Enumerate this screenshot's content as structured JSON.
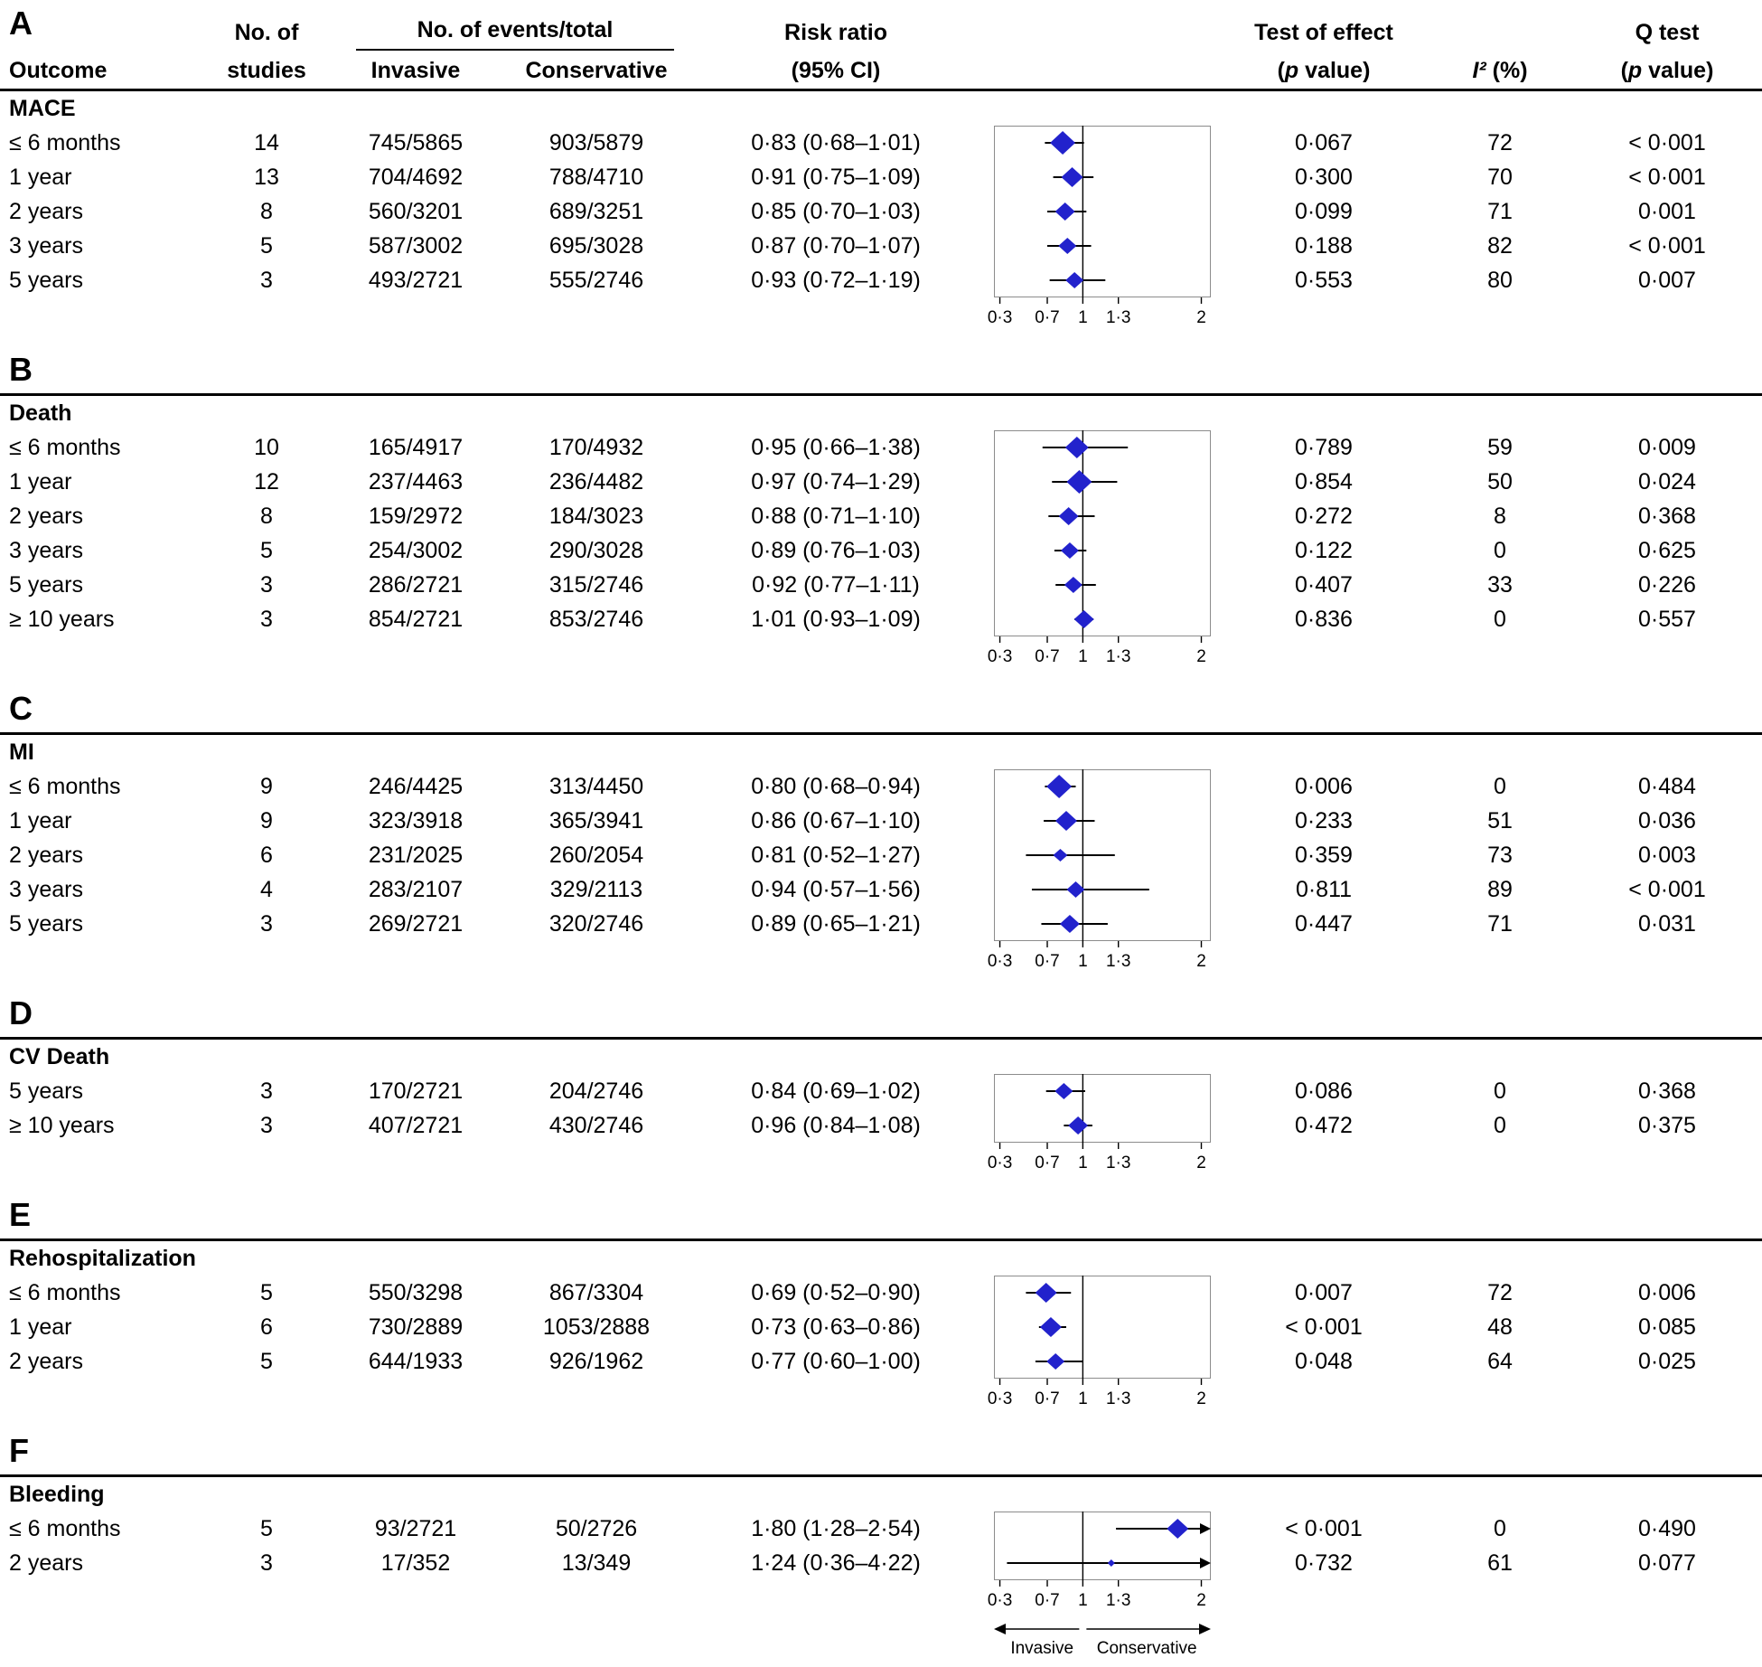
{
  "header": {
    "outcome": "Outcome",
    "no_of": "No. of",
    "studies": "studies",
    "events_total": "No. of events/total",
    "invasive": "Invasive",
    "conservative": "Conservative",
    "risk_ratio": "Risk ratio",
    "ci": "(95% CI)",
    "test_of_effect": "Test of effect",
    "p_open": "(",
    "p_italic": "p",
    "p_rest": " value)",
    "i2": "I²",
    "i2_unit": " (%)",
    "q_test": "Q test"
  },
  "footer": {
    "invasive": "Invasive",
    "conservative": "Conservative"
  },
  "colors": {
    "marker": "#2222cc",
    "box_border": "#8c8c8c",
    "rule": "#000000"
  },
  "chart_data": [
    {
      "type": "scatter",
      "panel_letter": "A",
      "group": "MACE",
      "xlim": [
        0.3,
        2
      ],
      "x_ref": 1,
      "xticks": [
        0.3,
        0.7,
        1,
        1.3,
        2
      ],
      "xtick_labels": [
        "0·3",
        "0·7",
        "1",
        "1·3",
        "2"
      ],
      "rows": [
        {
          "outcome": "≤ 6 months",
          "studies": 14,
          "invasive": "745/5865",
          "conservative": "903/5879",
          "rr_label": "0·83 (0·68–1·01)",
          "rr": 0.83,
          "ci_lo": 0.68,
          "ci_hi": 1.01,
          "marker": 14,
          "p_effect": "0·067",
          "i2": 72,
          "q_p": "< 0·001"
        },
        {
          "outcome": "1 year",
          "studies": 13,
          "invasive": "704/4692",
          "conservative": "788/4710",
          "rr_label": "0·91 (0·75–1·09)",
          "rr": 0.91,
          "ci_lo": 0.75,
          "ci_hi": 1.09,
          "marker": 12,
          "p_effect": "0·300",
          "i2": 70,
          "q_p": "< 0·001"
        },
        {
          "outcome": "2 years",
          "studies": 8,
          "invasive": "560/3201",
          "conservative": "689/3251",
          "rr_label": "0·85 (0·70–1·03)",
          "rr": 0.85,
          "ci_lo": 0.7,
          "ci_hi": 1.03,
          "marker": 11,
          "p_effect": "0·099",
          "i2": 71,
          "q_p": "0·001"
        },
        {
          "outcome": "3 years",
          "studies": 5,
          "invasive": "587/3002",
          "conservative": "695/3028",
          "rr_label": "0·87 (0·70–1·07)",
          "rr": 0.87,
          "ci_lo": 0.7,
          "ci_hi": 1.07,
          "marker": 10,
          "p_effect": "0·188",
          "i2": 82,
          "q_p": "< 0·001"
        },
        {
          "outcome": "5 years",
          "studies": 3,
          "invasive": "493/2721",
          "conservative": "555/2746",
          "rr_label": "0·93 (0·72–1·19)",
          "rr": 0.93,
          "ci_lo": 0.72,
          "ci_hi": 1.19,
          "marker": 10,
          "p_effect": "0·553",
          "i2": 80,
          "q_p": "0·007"
        }
      ]
    },
    {
      "type": "scatter",
      "panel_letter": "B",
      "group": "Death",
      "xlim": [
        0.3,
        2
      ],
      "x_ref": 1,
      "xticks": [
        0.3,
        0.7,
        1,
        1.3,
        2
      ],
      "xtick_labels": [
        "0·3",
        "0·7",
        "1",
        "1·3",
        "2"
      ],
      "rows": [
        {
          "outcome": "≤ 6 months",
          "studies": 10,
          "invasive": "165/4917",
          "conservative": "170/4932",
          "rr_label": "0·95 (0·66–1·38)",
          "rr": 0.95,
          "ci_lo": 0.66,
          "ci_hi": 1.38,
          "marker": 13,
          "p_effect": "0·789",
          "i2": 59,
          "q_p": "0·009"
        },
        {
          "outcome": "1 year",
          "studies": 12,
          "invasive": "237/4463",
          "conservative": "236/4482",
          "rr_label": "0·97 (0·74–1·29)",
          "rr": 0.97,
          "ci_lo": 0.74,
          "ci_hi": 1.29,
          "marker": 14,
          "p_effect": "0·854",
          "i2": 50,
          "q_p": "0·024"
        },
        {
          "outcome": "2 years",
          "studies": 8,
          "invasive": "159/2972",
          "conservative": "184/3023",
          "rr_label": "0·88 (0·71–1·10)",
          "rr": 0.88,
          "ci_lo": 0.71,
          "ci_hi": 1.1,
          "marker": 11,
          "p_effect": "0·272",
          "i2": 8,
          "q_p": "0·368"
        },
        {
          "outcome": "3 years",
          "studies": 5,
          "invasive": "254/3002",
          "conservative": "290/3028",
          "rr_label": "0·89 (0·76–1·03)",
          "rr": 0.89,
          "ci_lo": 0.76,
          "ci_hi": 1.03,
          "marker": 10,
          "p_effect": "0·122",
          "i2": 0,
          "q_p": "0·625"
        },
        {
          "outcome": "5 years",
          "studies": 3,
          "invasive": "286/2721",
          "conservative": "315/2746",
          "rr_label": "0·92 (0·77–1·11)",
          "rr": 0.92,
          "ci_lo": 0.77,
          "ci_hi": 1.11,
          "marker": 10,
          "p_effect": "0·407",
          "i2": 33,
          "q_p": "0·226"
        },
        {
          "outcome": "≥ 10 years",
          "studies": 3,
          "invasive": "854/2721",
          "conservative": "853/2746",
          "rr_label": "1·01 (0·93–1·09)",
          "rr": 1.01,
          "ci_lo": 0.93,
          "ci_hi": 1.09,
          "marker": 11,
          "p_effect": "0·836",
          "i2": 0,
          "q_p": "0·557"
        }
      ]
    },
    {
      "type": "scatter",
      "panel_letter": "C",
      "group": "MI",
      "xlim": [
        0.3,
        2
      ],
      "x_ref": 1,
      "xticks": [
        0.3,
        0.7,
        1,
        1.3,
        2
      ],
      "xtick_labels": [
        "0·3",
        "0·7",
        "1",
        "1·3",
        "2"
      ],
      "rows": [
        {
          "outcome": "≤ 6 months",
          "studies": 9,
          "invasive": "246/4425",
          "conservative": "313/4450",
          "rr_label": "0·80 (0·68–0·94)",
          "rr": 0.8,
          "ci_lo": 0.68,
          "ci_hi": 0.94,
          "marker": 14,
          "p_effect": "0·006",
          "i2": 0,
          "q_p": "0·484"
        },
        {
          "outcome": "1 year",
          "studies": 9,
          "invasive": "323/3918",
          "conservative": "365/3941",
          "rr_label": "0·86 (0·67–1·10)",
          "rr": 0.86,
          "ci_lo": 0.67,
          "ci_hi": 1.1,
          "marker": 12,
          "p_effect": "0·233",
          "i2": 51,
          "q_p": "0·036"
        },
        {
          "outcome": "2 years",
          "studies": 6,
          "invasive": "231/2025",
          "conservative": "260/2054",
          "rr_label": "0·81 (0·52–1·27)",
          "rr": 0.81,
          "ci_lo": 0.52,
          "ci_hi": 1.27,
          "marker": 8,
          "p_effect": "0·359",
          "i2": 73,
          "q_p": "0·003"
        },
        {
          "outcome": "3 years",
          "studies": 4,
          "invasive": "283/2107",
          "conservative": "329/2113",
          "rr_label": "0·94 (0·57–1·56)",
          "rr": 0.94,
          "ci_lo": 0.57,
          "ci_hi": 1.56,
          "marker": 10,
          "p_effect": "0·811",
          "i2": 89,
          "q_p": "< 0·001"
        },
        {
          "outcome": "5 years",
          "studies": 3,
          "invasive": "269/2721",
          "conservative": "320/2746",
          "rr_label": "0·89 (0·65–1·21)",
          "rr": 0.89,
          "ci_lo": 0.65,
          "ci_hi": 1.21,
          "marker": 11,
          "p_effect": "0·447",
          "i2": 71,
          "q_p": "0·031"
        }
      ]
    },
    {
      "type": "scatter",
      "panel_letter": "D",
      "group": "CV Death",
      "xlim": [
        0.3,
        2
      ],
      "x_ref": 1,
      "xticks": [
        0.3,
        0.7,
        1,
        1.3,
        2
      ],
      "xtick_labels": [
        "0·3",
        "0·7",
        "1",
        "1·3",
        "2"
      ],
      "rows": [
        {
          "outcome": "5 years",
          "studies": 3,
          "invasive": "170/2721",
          "conservative": "204/2746",
          "rr_label": "0·84 (0·69–1·02)",
          "rr": 0.84,
          "ci_lo": 0.69,
          "ci_hi": 1.02,
          "marker": 10,
          "p_effect": "0·086",
          "i2": 0,
          "q_p": "0·368"
        },
        {
          "outcome": "≥ 10 years",
          "studies": 3,
          "invasive": "407/2721",
          "conservative": "430/2746",
          "rr_label": "0·96 (0·84–1·08)",
          "rr": 0.96,
          "ci_lo": 0.84,
          "ci_hi": 1.08,
          "marker": 11,
          "p_effect": "0·472",
          "i2": 0,
          "q_p": "0·375"
        }
      ]
    },
    {
      "type": "scatter",
      "panel_letter": "E",
      "group": "Rehospitalization",
      "xlim": [
        0.3,
        2
      ],
      "x_ref": 1,
      "xticks": [
        0.3,
        0.7,
        1,
        1.3,
        2
      ],
      "xtick_labels": [
        "0·3",
        "0·7",
        "1",
        "1·3",
        "2"
      ],
      "rows": [
        {
          "outcome": "≤ 6 months",
          "studies": 5,
          "invasive": "550/3298",
          "conservative": "867/3304",
          "rr_label": "0·69 (0·52–0·90)",
          "rr": 0.69,
          "ci_lo": 0.52,
          "ci_hi": 0.9,
          "marker": 12,
          "p_effect": "0·007",
          "i2": 72,
          "q_p": "0·006"
        },
        {
          "outcome": "1 year",
          "studies": 6,
          "invasive": "730/2889",
          "conservative": "1053/2888",
          "rr_label": "0·73 (0·63–0·86)",
          "rr": 0.73,
          "ci_lo": 0.63,
          "ci_hi": 0.86,
          "marker": 12,
          "p_effect": "< 0·001",
          "i2": 48,
          "q_p": "0·085"
        },
        {
          "outcome": "2 years",
          "studies": 5,
          "invasive": "644/1933",
          "conservative": "926/1962",
          "rr_label": "0·77 (0·60–1·00)",
          "rr": 0.77,
          "ci_lo": 0.6,
          "ci_hi": 1.0,
          "marker": 10,
          "p_effect": "0·048",
          "i2": 64,
          "q_p": "0·025"
        }
      ]
    },
    {
      "type": "scatter",
      "panel_letter": "F",
      "group": "Bleeding",
      "xlim": [
        0.3,
        2
      ],
      "x_ref": 1,
      "xticks": [
        0.3,
        0.7,
        1,
        1.3,
        2
      ],
      "xtick_labels": [
        "0·3",
        "0·7",
        "1",
        "1·3",
        "2"
      ],
      "direction_arrows": true,
      "rows": [
        {
          "outcome": "≤ 6 months",
          "studies": 5,
          "invasive": "93/2721",
          "conservative": "50/2726",
          "rr_label": "1·80 (1·28–2·54)",
          "rr": 1.8,
          "ci_lo": 1.28,
          "ci_hi": 2.54,
          "marker": 12,
          "p_effect": "< 0·001",
          "i2": 0,
          "q_p": "0·490"
        },
        {
          "outcome": "2 years",
          "studies": 3,
          "invasive": "17/352",
          "conservative": "13/349",
          "rr_label": "1·24 (0·36–4·22)",
          "rr": 1.24,
          "ci_lo": 0.36,
          "ci_hi": 4.22,
          "marker": 4,
          "p_effect": "0·732",
          "i2": 61,
          "q_p": "0·077"
        }
      ]
    }
  ]
}
